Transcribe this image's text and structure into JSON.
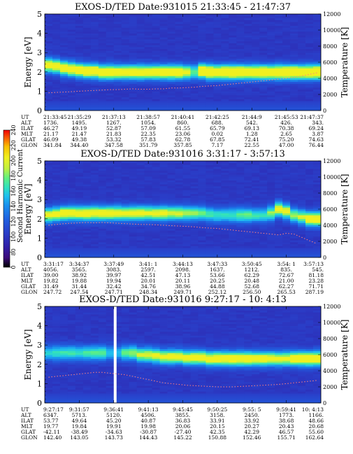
{
  "colorbar": {
    "label": "Second Harmonic Current",
    "ticks": [
      "0",
      "80",
      "100",
      "120",
      "140",
      "160",
      "180",
      "200",
      "220",
      "240"
    ],
    "colors": [
      "#000000",
      "#3b0b7a",
      "#3020a8",
      "#2a3ec8",
      "#2060e0",
      "#1a90ee",
      "#20c0ee",
      "#30e0c0",
      "#60f080",
      "#c0f040",
      "#f0f020",
      "#f8c000",
      "#f86000",
      "#f00000"
    ]
  },
  "chart_data": [
    {
      "type": "heatmap",
      "title": "EXOS-D/TED   Date:931015  21:33:45 - 21:47:37",
      "ylabel": "Energy [eV]",
      "y2label": "Temperature [K]",
      "yticks": [
        "0",
        "1",
        "2",
        "3",
        "4",
        "5"
      ],
      "y2ticks": [
        "0",
        "2000",
        "4000",
        "6000",
        "8000",
        "10000",
        "12000"
      ],
      "ylim": [
        0,
        5
      ],
      "y2lim": [
        0,
        12000
      ],
      "ephemeris": {
        "rows": [
          "UT",
          "ALT",
          "ILAT",
          "MLT",
          "GLAT",
          "GLON"
        ],
        "columns": [
          [
            "21:33:45",
            "1736.",
            "46.27",
            "21.17",
            "46.09",
            "341.84"
          ],
          [
            "21:35:29",
            "1495.",
            "49.19",
            "21.47",
            "49.38",
            "344.40"
          ],
          [
            "21:37:13",
            "1267.",
            "52.87",
            "21.83",
            "53.32",
            "347.58"
          ],
          [
            "21:38:57",
            "1054.",
            "57.09",
            "22.35",
            "57.83",
            "351.79"
          ],
          [
            "21:40:41",
            "860.",
            "61.55",
            "23.06",
            "62.78",
            "357.85"
          ],
          [
            "21:42:25",
            "688.",
            "65.79",
            "0.02",
            "67.85",
            "7.17"
          ],
          [
            "21:44:9",
            "542.",
            "69.13",
            "1.28",
            "72.41",
            "22.55"
          ],
          [
            "21:45:53",
            "426.",
            "70.38",
            "2.65",
            "75.20",
            "47.00"
          ],
          [
            "21:47:37",
            "343.",
            "69.24",
            "3.87",
            "74.63",
            "76.44"
          ]
        ]
      },
      "band_center_ev": [
        2.35,
        2.3,
        2.2,
        2.15,
        2.1,
        2.05,
        2.05,
        2.0,
        2.0,
        2.0,
        2.0,
        2.0,
        2.0,
        2.0,
        2.0,
        2.0,
        2.0,
        2.0,
        2.0,
        2.0,
        2.05,
        2.0,
        2.0,
        2.0,
        2.0,
        2.0,
        2.0,
        2.0,
        2.0,
        2.0,
        2.0,
        2.0,
        2.0,
        2.0,
        2.0,
        2.0
      ],
      "band_intensity": [
        0.75,
        0.75,
        0.78,
        0.8,
        0.8,
        0.82,
        0.82,
        0.82,
        0.82,
        0.8,
        0.78,
        0.78,
        0.78,
        0.78,
        0.8,
        0.8,
        0.82,
        0.82,
        0.7,
        0.55,
        0.85,
        0.88,
        0.85,
        0.88,
        0.9,
        0.9,
        0.88,
        0.88,
        0.85,
        0.85,
        0.88,
        0.9,
        0.88,
        0.86,
        0.88,
        0.9
      ],
      "temperature_k": [
        2200,
        2250,
        2300,
        2350,
        2400,
        2450,
        2500,
        2550,
        2600,
        2600,
        2650,
        2700,
        2650,
        2650,
        2700,
        2700,
        2800,
        2800,
        2850,
        2900,
        3000,
        3050,
        3100,
        3200,
        3300,
        3400,
        3500,
        3600,
        3700,
        3800,
        3900,
        4000,
        4100,
        4300,
        4500,
        4700
      ]
    },
    {
      "type": "heatmap",
      "title": "EXOS-D/TED   Date:931016  3:31:17 - 3:57:13",
      "ylabel": "Energy [eV]",
      "y2label": "Temperature [K]",
      "yticks": [
        "0",
        "1",
        "2",
        "3",
        "4",
        "5"
      ],
      "y2ticks": [
        "0",
        "2000",
        "4000",
        "6000",
        "8000",
        "10000",
        "12000"
      ],
      "ylim": [
        0,
        5
      ],
      "y2lim": [
        0,
        12000
      ],
      "ephemeris": {
        "rows": [
          "UT",
          "ALT",
          "ILAT",
          "MLT",
          "GLAT",
          "GLON"
        ],
        "columns": [
          [
            "3:31:17",
            "4056.",
            "39.00",
            "19.82",
            "31.49",
            "247.72"
          ],
          [
            "3:34:37",
            "3565.",
            "38.92",
            "19.88",
            "31.44",
            "247.54"
          ],
          [
            "3:37:49",
            "3083.",
            "39.97",
            "19.94",
            "32.42",
            "247.71"
          ],
          [
            "3:41: 1",
            "2597.",
            "42.51",
            "20.01",
            "34.76",
            "248.34"
          ],
          [
            "3:44:13",
            "2098.",
            "47.13",
            "20.11",
            "38.96",
            "249.71"
          ],
          [
            "3:47:33",
            "1637.",
            "53.66",
            "20.25",
            "44.88",
            "252.12"
          ],
          [
            "3:50:45",
            "1212.",
            "62.29",
            "20.48",
            "52.68",
            "256.50"
          ],
          [
            "3:54: 1",
            "835.",
            "72.67",
            "21.00",
            "62.27",
            "265.53"
          ],
          [
            "3:57:13",
            "545.",
            "81.18",
            "23.28",
            "71.71",
            "287.19"
          ]
        ]
      },
      "band_center_ev": [
        2.2,
        2.25,
        2.3,
        2.3,
        2.3,
        2.3,
        2.3,
        2.3,
        2.3,
        2.3,
        2.3,
        2.3,
        2.3,
        2.3,
        2.3,
        2.3,
        2.3,
        2.3,
        2.3,
        2.3,
        2.3,
        2.25,
        2.2,
        2.2,
        2.2,
        2.2,
        2.2,
        2.2,
        2.2,
        2.3,
        2.5,
        2.4,
        2.2,
        2.1,
        2.0,
        2.0
      ],
      "band_intensity": [
        0.7,
        0.72,
        0.75,
        0.75,
        0.75,
        0.75,
        0.75,
        0.74,
        0.74,
        0.74,
        0.72,
        0.72,
        0.72,
        0.7,
        0.7,
        0.7,
        0.68,
        0.66,
        0.62,
        0.6,
        0.55,
        0.52,
        0.5,
        0.48,
        0.5,
        0.55,
        0.55,
        0.5,
        0.5,
        0.6,
        0.72,
        0.7,
        0.6,
        0.65,
        0.78,
        0.8
      ],
      "temperature_k": [
        4000,
        4100,
        4200,
        4250,
        4300,
        4350,
        4300,
        4350,
        4300,
        4250,
        4200,
        4150,
        4100,
        4100,
        4050,
        4000,
        3950,
        3900,
        3850,
        3800,
        3700,
        3650,
        3600,
        3500,
        3400,
        3300,
        3200,
        3100,
        3000,
        2900,
        2800,
        3000,
        2900,
        2500,
        2100,
        1700
      ]
    },
    {
      "type": "heatmap",
      "title": "EXOS-D/TED   Date:931016  9:27:17 - 10: 4:13",
      "ylabel": "Energy [eV]",
      "y2label": "Temperature [K]",
      "yticks": [
        "0",
        "1",
        "2",
        "3",
        "4",
        "5"
      ],
      "y2ticks": [
        "0",
        "2000",
        "4000",
        "6000",
        "8000",
        "10000",
        "12000"
      ],
      "ylim": [
        0,
        5
      ],
      "y2lim": [
        0,
        12000
      ],
      "ephemeris": {
        "rows": [
          "UT",
          "ALT",
          "ILAT",
          "MLT",
          "GLAT",
          "GLON"
        ],
        "columns": [
          [
            "9:27:17",
            "6347.",
            "53.77",
            "19.77",
            "-42.11",
            "142.40"
          ],
          [
            "9:31:57",
            "5713.",
            "49.64",
            "19.84",
            "-38.49",
            "143.05"
          ],
          [
            "9:36:41",
            "5120.",
            "45.20",
            "19.91",
            "-34.63",
            "143.73"
          ],
          [
            "9:41:13",
            "4506.",
            "40.87",
            "19.98",
            "-30.87",
            "144.43"
          ],
          [
            "9:45:45",
            "3855.",
            "36.83",
            "20.06",
            "-27.40",
            "145.22"
          ],
          [
            "9:50:25",
            "3158.",
            "33.91",
            "20.15",
            "42.35",
            "150.88"
          ],
          [
            "9:55: 5",
            "2450.",
            "33.92",
            "20.27",
            "42.29",
            "152.46"
          ],
          [
            "9:59:41",
            "1773.",
            "38.68",
            "20.43",
            "46.57",
            "155.71"
          ],
          [
            "10: 4:13",
            "1166.",
            "48.66",
            "20.68",
            "55.60",
            "162.64"
          ]
        ]
      },
      "band_center_ev": [
        2.6,
        2.6,
        2.6,
        2.6,
        2.6,
        2.6,
        2.6,
        2.6,
        2.6,
        2.6,
        2.6,
        2.6,
        2.5,
        2.5,
        2.45,
        2.4,
        2.4,
        2.4,
        2.35,
        2.35,
        2.35,
        2.3,
        2.3,
        2.3,
        2.3,
        2.3,
        2.3,
        2.3,
        2.3,
        2.3,
        2.3,
        2.3,
        2.3,
        2.3,
        2.3,
        2.3
      ],
      "band_intensity": [
        0.45,
        0.5,
        0.5,
        0.5,
        0.5,
        0.52,
        0.55,
        0.55,
        0.4,
        0.4,
        0.55,
        0.6,
        0.65,
        0.68,
        0.7,
        0.7,
        0.72,
        0.72,
        0.72,
        0.75,
        0.75,
        0.75,
        0.78,
        0.78,
        0.78,
        0.78,
        0.78,
        0.75,
        0.74,
        0.72,
        0.72,
        0.72,
        0.8,
        0.82,
        0.82,
        0.82
      ],
      "temperature_k": [
        3200,
        3300,
        3400,
        3500,
        3600,
        3700,
        3800,
        3800,
        3700,
        3600,
        3500,
        3300,
        3100,
        2900,
        2700,
        2500,
        2400,
        2300,
        2200,
        2150,
        2100,
        2050,
        2000,
        2000,
        2000,
        2050,
        2100,
        2150,
        2200,
        2250,
        2300,
        2400,
        2500,
        2600,
        2700,
        2800
      ]
    }
  ]
}
